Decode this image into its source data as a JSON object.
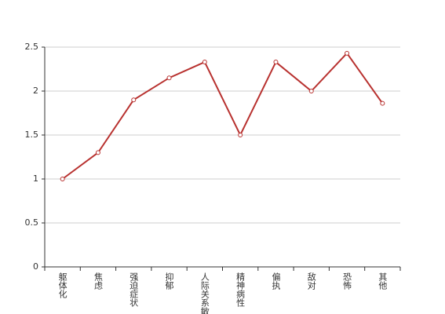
{
  "chart_data": {
    "type": "line",
    "categories": [
      "躯体化",
      "焦虑",
      "强迫症状",
      "抑郁",
      "人际关系敏感",
      "精神病性",
      "偏执",
      "敌对",
      "恐怖",
      "其他"
    ],
    "series": [
      {
        "color": "#b8312f",
        "values": [
          1.0,
          1.3,
          1.9,
          2.15,
          2.33,
          1.5,
          2.33,
          2.0,
          2.43,
          1.86
        ]
      }
    ],
    "ylim": [
      0,
      2.5
    ],
    "yticks": [
      0,
      0.5,
      1,
      1.5,
      2,
      2.5
    ],
    "grid": true
  }
}
